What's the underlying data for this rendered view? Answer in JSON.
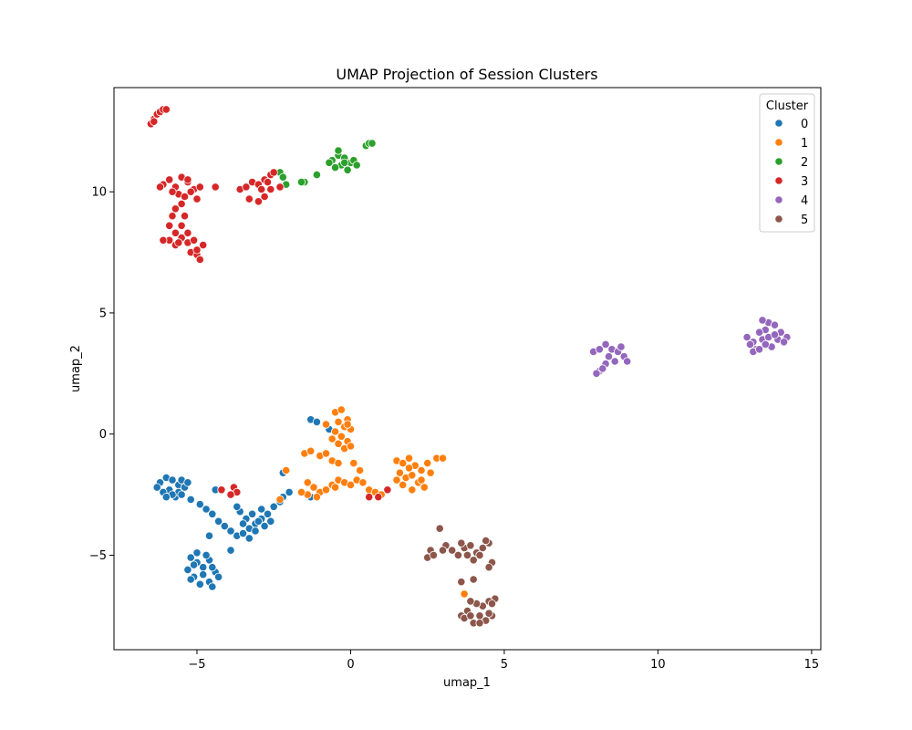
{
  "chart_data": {
    "type": "scatter",
    "title": "UMAP Projection of Session Clusters",
    "xlabel": "umap_1",
    "ylabel": "umap_2",
    "xlim": [
      -7.7,
      15.3
    ],
    "ylim": [
      -8.9,
      14.3
    ],
    "x_ticks": [
      -5,
      0,
      5,
      10,
      15
    ],
    "y_ticks": [
      -5,
      0,
      5,
      10
    ],
    "x_tick_labels": [
      "−5",
      "0",
      "5",
      "10",
      "15"
    ],
    "y_tick_labels": [
      "−5",
      "0",
      "5",
      "10"
    ],
    "grid": false,
    "legend_title": "Cluster",
    "legend_position": "top-right",
    "series": [
      {
        "name": "0",
        "color": "#1f77b4",
        "points": [
          [
            -6.2,
            -2.0
          ],
          [
            -6.0,
            -1.8
          ],
          [
            -5.8,
            -1.9
          ],
          [
            -5.6,
            -2.1
          ],
          [
            -5.9,
            -2.3
          ],
          [
            -6.1,
            -2.4
          ],
          [
            -5.7,
            -2.6
          ],
          [
            -5.5,
            -1.9
          ],
          [
            -5.4,
            -2.2
          ],
          [
            -6.3,
            -2.2
          ],
          [
            -5.6,
            -2.4
          ],
          [
            -5.8,
            -2.5
          ],
          [
            -6.0,
            -2.6
          ],
          [
            -5.3,
            -2.0
          ],
          [
            -5.5,
            -2.5
          ],
          [
            -5.2,
            -2.7
          ],
          [
            -4.9,
            -2.9
          ],
          [
            -4.7,
            -3.1
          ],
          [
            -4.5,
            -3.3
          ],
          [
            -4.3,
            -3.6
          ],
          [
            -4.1,
            -3.8
          ],
          [
            -3.9,
            -4.0
          ],
          [
            -3.7,
            -4.2
          ],
          [
            -3.5,
            -4.1
          ],
          [
            -3.3,
            -3.9
          ],
          [
            -3.1,
            -3.7
          ],
          [
            -2.9,
            -3.5
          ],
          [
            -2.7,
            -3.3
          ],
          [
            -2.5,
            -3.0
          ],
          [
            -2.3,
            -2.8
          ],
          [
            -3.6,
            -3.2
          ],
          [
            -3.4,
            -3.5
          ],
          [
            -3.2,
            -3.3
          ],
          [
            -3.0,
            -3.6
          ],
          [
            -2.8,
            -3.8
          ],
          [
            -2.6,
            -3.6
          ],
          [
            -3.5,
            -3.7
          ],
          [
            -3.1,
            -4.0
          ],
          [
            -2.9,
            -3.1
          ],
          [
            -3.3,
            -4.3
          ],
          [
            -3.7,
            -3.0
          ],
          [
            -4.4,
            -2.3
          ],
          [
            -2.2,
            -2.6
          ],
          [
            -2.0,
            -2.4
          ],
          [
            -5.2,
            -5.1
          ],
          [
            -5.0,
            -5.3
          ],
          [
            -4.8,
            -5.5
          ],
          [
            -4.6,
            -5.2
          ],
          [
            -4.4,
            -5.7
          ],
          [
            -4.3,
            -5.9
          ],
          [
            -4.6,
            -6.1
          ],
          [
            -4.9,
            -6.2
          ],
          [
            -5.1,
            -5.9
          ],
          [
            -5.3,
            -5.6
          ],
          [
            -5.0,
            -4.9
          ],
          [
            -4.7,
            -5.0
          ],
          [
            -4.5,
            -6.3
          ],
          [
            -5.2,
            -6.0
          ],
          [
            -4.8,
            -5.8
          ],
          [
            -5.1,
            -5.4
          ],
          [
            -4.5,
            -5.5
          ],
          [
            -4.6,
            -4.2
          ],
          [
            -3.9,
            -4.8
          ],
          [
            -1.3,
            0.6
          ],
          [
            -1.1,
            0.5
          ],
          [
            -0.7,
            0.2
          ],
          [
            -1.3,
            -2.6
          ],
          [
            -2.2,
            -1.6
          ]
        ]
      },
      {
        "name": "1",
        "color": "#ff7f0e",
        "points": [
          [
            -0.5,
            0.9
          ],
          [
            -0.3,
            1.0
          ],
          [
            -0.1,
            0.6
          ],
          [
            -0.4,
            0.5
          ],
          [
            -0.2,
            0.3
          ],
          [
            -0.5,
            0.1
          ],
          [
            -0.3,
            -0.1
          ],
          [
            -0.1,
            -0.3
          ],
          [
            -0.4,
            -0.4
          ],
          [
            -0.6,
            -0.2
          ],
          [
            0.0,
            0.2
          ],
          [
            -0.2,
            -0.6
          ],
          [
            -0.1,
            0.4
          ],
          [
            -0.8,
            0.4
          ],
          [
            0.0,
            -0.5
          ],
          [
            -1.5,
            -0.8
          ],
          [
            -1.3,
            -0.7
          ],
          [
            -1.0,
            -0.9
          ],
          [
            -0.8,
            -0.8
          ],
          [
            -0.6,
            -1.1
          ],
          [
            -0.4,
            -1.2
          ],
          [
            -1.4,
            -2.0
          ],
          [
            -1.2,
            -2.2
          ],
          [
            -1.0,
            -2.4
          ],
          [
            -0.8,
            -2.3
          ],
          [
            -0.6,
            -2.1
          ],
          [
            -0.4,
            -1.9
          ],
          [
            -0.2,
            -2.0
          ],
          [
            0.0,
            -2.1
          ],
          [
            0.2,
            -1.9
          ],
          [
            0.4,
            -2.0
          ],
          [
            0.6,
            -2.3
          ],
          [
            0.8,
            -2.4
          ],
          [
            1.0,
            -2.5
          ],
          [
            0.3,
            -1.5
          ],
          [
            -1.4,
            -2.5
          ],
          [
            -1.1,
            -2.6
          ],
          [
            -0.5,
            -2.2
          ],
          [
            0.1,
            -1.2
          ],
          [
            -1.6,
            -2.4
          ],
          [
            -2.1,
            -1.5
          ],
          [
            -2.3,
            -2.7
          ],
          [
            1.5,
            -1.1
          ],
          [
            1.7,
            -1.2
          ],
          [
            1.9,
            -1.0
          ],
          [
            2.1,
            -1.3
          ],
          [
            2.3,
            -1.5
          ],
          [
            2.5,
            -1.2
          ],
          [
            2.8,
            -1.0
          ],
          [
            3.0,
            -1.0
          ],
          [
            1.6,
            -1.6
          ],
          [
            1.8,
            -1.8
          ],
          [
            2.0,
            -1.7
          ],
          [
            2.2,
            -2.0
          ],
          [
            2.4,
            -2.2
          ],
          [
            1.7,
            -2.1
          ],
          [
            2.0,
            -2.3
          ],
          [
            1.5,
            -1.9
          ],
          [
            2.6,
            -1.6
          ],
          [
            1.9,
            -1.4
          ],
          [
            2.3,
            -1.9
          ],
          [
            3.7,
            -6.6
          ]
        ]
      },
      {
        "name": "2",
        "color": "#2ca02c",
        "points": [
          [
            -0.6,
            11.3
          ],
          [
            -0.4,
            11.5
          ],
          [
            -0.2,
            11.4
          ],
          [
            0.0,
            11.2
          ],
          [
            -0.3,
            11.1
          ],
          [
            -0.5,
            11.0
          ],
          [
            -0.1,
            10.9
          ],
          [
            0.1,
            11.3
          ],
          [
            -0.4,
            11.7
          ],
          [
            -0.2,
            11.2
          ],
          [
            0.2,
            11.1
          ],
          [
            -0.7,
            11.2
          ],
          [
            0.5,
            11.9
          ],
          [
            0.6,
            12.0
          ],
          [
            0.7,
            12.0
          ],
          [
            -1.1,
            10.7
          ],
          [
            -1.5,
            10.4
          ],
          [
            -1.6,
            10.4
          ],
          [
            -2.3,
            10.8
          ],
          [
            -2.1,
            10.3
          ],
          [
            -2.2,
            10.6
          ]
        ]
      },
      {
        "name": "3",
        "color": "#d62728",
        "points": [
          [
            -6.5,
            12.8
          ],
          [
            -6.4,
            13.0
          ],
          [
            -6.3,
            13.2
          ],
          [
            -6.2,
            13.3
          ],
          [
            -6.1,
            13.4
          ],
          [
            -6.0,
            13.4
          ],
          [
            -6.4,
            12.9
          ],
          [
            -6.1,
            10.3
          ],
          [
            -5.9,
            10.5
          ],
          [
            -5.7,
            10.2
          ],
          [
            -5.5,
            10.6
          ],
          [
            -5.3,
            10.4
          ],
          [
            -5.1,
            10.1
          ],
          [
            -4.9,
            10.2
          ],
          [
            -5.6,
            9.9
          ],
          [
            -5.4,
            9.8
          ],
          [
            -5.2,
            10.0
          ],
          [
            -5.0,
            9.7
          ],
          [
            -5.8,
            10.0
          ],
          [
            -6.2,
            10.2
          ],
          [
            -5.7,
            9.3
          ],
          [
            -5.5,
            9.5
          ],
          [
            -5.8,
            9.0
          ],
          [
            -4.4,
            10.2
          ],
          [
            -5.3,
            10.5
          ],
          [
            -5.9,
            8.6
          ],
          [
            -5.7,
            8.3
          ],
          [
            -5.5,
            8.1
          ],
          [
            -5.3,
            7.9
          ],
          [
            -5.7,
            7.8
          ],
          [
            -5.9,
            8.0
          ],
          [
            -6.1,
            8.0
          ],
          [
            -5.5,
            8.6
          ],
          [
            -5.3,
            8.3
          ],
          [
            -5.1,
            8.0
          ],
          [
            -5.4,
            9.0
          ],
          [
            -5.2,
            7.5
          ],
          [
            -5.0,
            7.4
          ],
          [
            -4.9,
            7.2
          ],
          [
            -5.0,
            7.6
          ],
          [
            -4.8,
            7.8
          ],
          [
            -5.6,
            7.9
          ],
          [
            -3.6,
            10.1
          ],
          [
            -3.4,
            10.2
          ],
          [
            -3.2,
            10.4
          ],
          [
            -3.0,
            10.3
          ],
          [
            -2.8,
            10.5
          ],
          [
            -2.6,
            10.7
          ],
          [
            -2.5,
            10.8
          ],
          [
            -2.3,
            10.2
          ],
          [
            -3.3,
            9.7
          ],
          [
            -3.0,
            9.6
          ],
          [
            -2.8,
            9.8
          ],
          [
            -2.6,
            10.1
          ],
          [
            -2.9,
            10.1
          ],
          [
            -2.7,
            10.4
          ],
          [
            -3.8,
            -2.2
          ],
          [
            -3.7,
            -2.4
          ],
          [
            -3.9,
            -2.5
          ],
          [
            -4.2,
            -2.3
          ],
          [
            0.6,
            -2.6
          ],
          [
            0.9,
            -2.6
          ],
          [
            1.2,
            -2.3
          ]
        ]
      },
      {
        "name": "4",
        "color": "#9467bd",
        "points": [
          [
            7.9,
            3.4
          ],
          [
            8.1,
            3.5
          ],
          [
            8.3,
            3.7
          ],
          [
            8.5,
            3.5
          ],
          [
            8.7,
            3.4
          ],
          [
            8.9,
            3.2
          ],
          [
            9.0,
            3.0
          ],
          [
            8.8,
            3.6
          ],
          [
            8.4,
            3.2
          ],
          [
            8.3,
            2.9
          ],
          [
            8.1,
            2.6
          ],
          [
            8.0,
            2.5
          ],
          [
            8.6,
            3.0
          ],
          [
            8.2,
            2.7
          ],
          [
            12.9,
            4.0
          ],
          [
            13.1,
            3.8
          ],
          [
            13.2,
            3.5
          ],
          [
            13.4,
            3.9
          ],
          [
            13.5,
            4.3
          ],
          [
            13.6,
            4.6
          ],
          [
            13.8,
            4.5
          ],
          [
            14.0,
            4.2
          ],
          [
            14.2,
            4.0
          ],
          [
            13.7,
            3.6
          ],
          [
            13.3,
            4.2
          ],
          [
            13.5,
            3.7
          ],
          [
            13.9,
            3.9
          ],
          [
            13.1,
            3.4
          ],
          [
            13.6,
            4.0
          ],
          [
            13.4,
            4.7
          ],
          [
            14.1,
            3.8
          ],
          [
            13.0,
            3.7
          ],
          [
            13.8,
            4.1
          ],
          [
            13.3,
            3.5
          ]
        ]
      },
      {
        "name": "5",
        "color": "#8c564b",
        "points": [
          [
            2.9,
            -3.9
          ],
          [
            3.1,
            -4.6
          ],
          [
            3.3,
            -4.8
          ],
          [
            3.5,
            -5.0
          ],
          [
            3.7,
            -4.7
          ],
          [
            3.9,
            -4.6
          ],
          [
            4.1,
            -4.9
          ],
          [
            4.3,
            -4.7
          ],
          [
            4.5,
            -4.5
          ],
          [
            2.6,
            -4.8
          ],
          [
            2.5,
            -5.1
          ],
          [
            3.8,
            -5.0
          ],
          [
            4.0,
            -5.2
          ],
          [
            4.4,
            -4.4
          ],
          [
            4.6,
            -5.3
          ],
          [
            4.5,
            -5.5
          ],
          [
            3.6,
            -4.5
          ],
          [
            4.2,
            -5.0
          ],
          [
            3.0,
            -4.8
          ],
          [
            2.7,
            -5.0
          ],
          [
            3.6,
            -7.5
          ],
          [
            3.8,
            -7.3
          ],
          [
            4.0,
            -7.8
          ],
          [
            4.2,
            -7.5
          ],
          [
            4.4,
            -7.7
          ],
          [
            4.6,
            -7.5
          ],
          [
            4.7,
            -6.8
          ],
          [
            4.5,
            -6.9
          ],
          [
            4.3,
            -7.1
          ],
          [
            4.1,
            -7.0
          ],
          [
            3.9,
            -6.9
          ],
          [
            3.7,
            -7.6
          ],
          [
            4.2,
            -7.8
          ],
          [
            4.5,
            -7.4
          ],
          [
            3.9,
            -7.5
          ],
          [
            4.0,
            -6.0
          ],
          [
            3.6,
            -6.1
          ],
          [
            4.6,
            -7.0
          ]
        ]
      }
    ]
  }
}
